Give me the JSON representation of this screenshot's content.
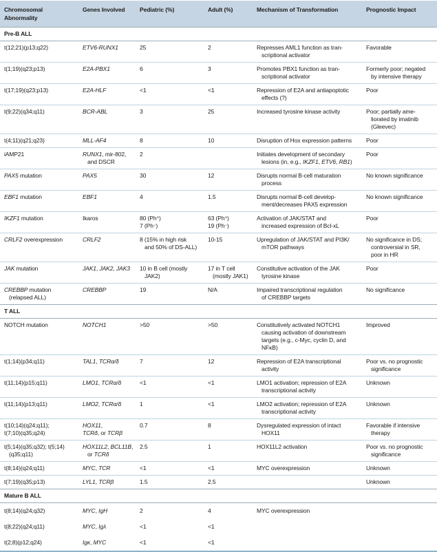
{
  "styles": {
    "header_bg": "#c6d5e4",
    "rule": "#bdd3e2",
    "section_rule": "#9aacb8",
    "bottom_rule": "#8fb2ca",
    "text": "#1c1c1a"
  },
  "chart_data": {
    "type": "table",
    "columns": [
      "Chromosomal\nAbnormality",
      "Genes Involved",
      "Pediatric (%)",
      "Adult (%)",
      "Mechanism of Transformation",
      "Prognostic Impact"
    ],
    "sections": [
      {
        "label": "Pre-B ALL",
        "ruled": true,
        "rows": [
          [
            "t(12;21)(p13;q22)",
            "*ETV6-RUNX1*",
            "25",
            "2",
            "Represses AML1 function as tran-\n→scriptional activator",
            "Favorable"
          ],
          [
            "t(1;19)(q23;p13)",
            "*E2A-PBX1*",
            "6",
            "3",
            "Promotes PBX1 function as tran-\n→scriptional activator",
            "Formerly poor; negated\n→by intensive therapy"
          ],
          [
            "t(17;19)(q23;p13)",
            "*E2A-HLF*",
            "<1",
            "<1",
            "Repression of E2A and antiapoptotic\n→effects (?)",
            "Poor"
          ],
          [
            "t(9;22)(q34;q11)",
            "*BCR-ABL*",
            "3",
            "25",
            "Increased tyrosine kinase activity",
            "Poor; partially ame-\n→liorated by imatinib\n→(Gleevec)"
          ],
          [
            "t(4;11)(q21;q23)",
            "*MLL-AF4*",
            "8",
            "10",
            "Disruption of Hox expression patterns",
            "Poor"
          ],
          [
            "iAMP21",
            "*RUNX1*, mir-802,\n→and DSCR",
            "2",
            "",
            "Initiates development of secondary\n→lesions (in, e.g., *IKZF1*, *ETV6*, *RB1*)",
            "Poor"
          ],
          [
            "*PAX5* mutation",
            "*PAX5*",
            "30",
            "12",
            "Disrupts normal B-cell maturation\n→process",
            "No known significance"
          ],
          [
            "*EBF1* mutation",
            "*EBF1*",
            "4",
            "1.5",
            "Disrupts normal B-cell develop-\n→ment/decreases PAX5 expression",
            "No known significance"
          ],
          [
            "*IKZF1* mutation",
            "Ikaros",
            "80 (Ph^+^)\n7 (Ph^−^)",
            "63 (Ph^+^)\n19 (Ph^−^)",
            "Activation of JAK/STAT and\n→increased expression of Bcl-xL",
            "Poor"
          ],
          [
            "*CRLF2* overexpression",
            "*CRLF2*",
            "8 (15% in high risk\n→and 50% of DS-ALL)",
            "10-15",
            "Upregulation of JAK/STAT and PI3K/\n→mTOR pathways",
            "No significance in DS;\n→controversial in SR,\n→poor in HR"
          ],
          [
            "*JAK* mutation",
            "*JAK1*, *JAK2*, *JAK3*",
            "10 in B cell (mostly\n→JAK2)",
            "17 in T cell\n→(mostly JAK1)",
            "Constitutive activation of the JAK\n→tyrosine kinase",
            "Poor"
          ],
          [
            "*CREBBP* mutation\n→(relapsed ALL)",
            "*CREBBP*",
            "19",
            "N/A",
            "Impaired transcriptional regulation\n→of CREBBP targets",
            "No significance"
          ]
        ]
      },
      {
        "label": "T ALL",
        "ruled": true,
        "rows": [
          [
            "NOTCH mutation",
            "*NOTCH1*",
            ">50",
            ">50",
            "Constitutively activated NOTCH1\n→causing activation of downstream\n→targets (e.g., c-Myc, cyclin D, and\n→NFκB)",
            "Improved"
          ],
          [
            "t(1;14)(p34;q11)",
            "*TAL1*, *TCRα/δ*",
            "7",
            "12",
            "Repression of E2A transcriptional\n→activity",
            "Poor vs. no prognostic\n→significance"
          ],
          [
            "t(11;14)(p15;q11)",
            "*LMO1*, *TCRα/δ*",
            "<1",
            "<1",
            "LMO1 activation; repression of E2A\n→transcriptional activity",
            "Unknown"
          ],
          [
            "t(11;14)(p13;q11)",
            "*LMO2*, *TCRα/δ*",
            "1",
            "<1",
            "LMO2 activation; repression of E2A\n→transcriptional activity",
            "Unknown"
          ],
          [
            "t(10;14)(q24;q11);\nt(7;10)(q35;q24)",
            "*HOX11*,\n*TCRδ*, or *TCRβ*",
            "0.7",
            "8",
            "Dysregulated expression of intact\n→HOX11",
            "Favorable if intensive\n→therapy"
          ],
          [
            "t(5;14)(q35;q32); t(5;14)\n→(q35;q11)",
            "*HOX11L2*, *BCL11B*,\n→or *TCRδ*",
            "2.5",
            "1",
            "HOX11L2 activation",
            "Poor vs. no prognostic\n→significance"
          ],
          [
            "t(8;14)(q24;q11)",
            "*MYC*, *TCR*",
            "<1",
            "<1",
            "MYC overexpression",
            "Unknown"
          ],
          [
            "t(7;19)(q35;p13)",
            "*LYL1*, *TCRβ*",
            "1.5",
            "2.5",
            "",
            "Unknown"
          ]
        ]
      },
      {
        "label": "Mature B ALL",
        "ruled": false,
        "rows": [
          [
            "t(8;14)(q24;q32)",
            "*MYC*, *IgH*",
            "2",
            "4",
            "MYC overexpression",
            ""
          ],
          [
            "t(8;22)(q24;q11)",
            "*MYC*, *Igλ*",
            "<1",
            "<1",
            "",
            ""
          ],
          [
            "t(2;8)(p12;q24)",
            "*Igκ*, *MYC*",
            "<1",
            "<1",
            "",
            ""
          ]
        ]
      }
    ]
  }
}
